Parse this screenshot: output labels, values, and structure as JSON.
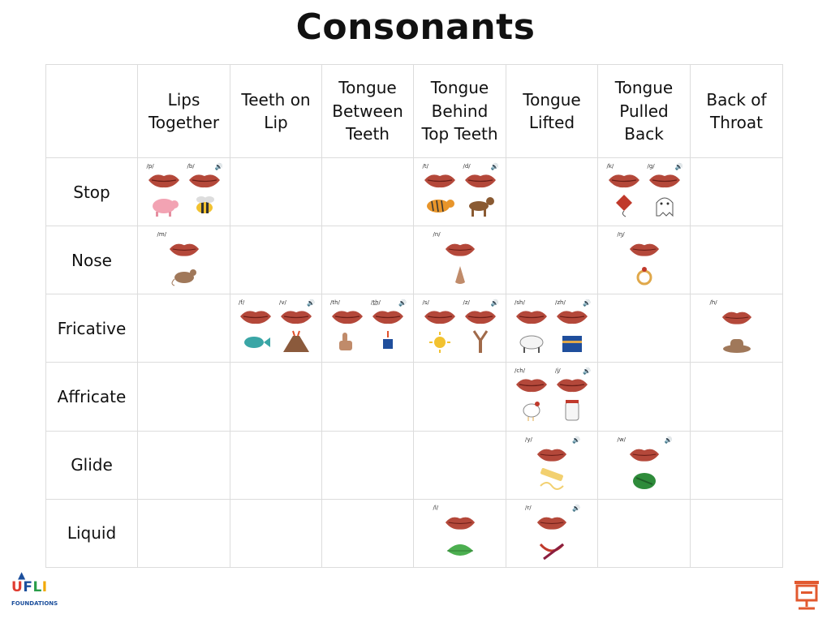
{
  "title": "Consonants",
  "columns": [
    "Lips Together",
    "Teeth on Lip",
    "Tongue Between Teeth",
    "Tongue Behind Top Teeth",
    "Tongue Lifted",
    "Tongue Pulled Back",
    "Back of Throat"
  ],
  "column_lines": [
    [
      "Lips",
      "Together"
    ],
    [
      "Teeth on",
      "Lip"
    ],
    [
      "Tongue",
      "Between",
      "Teeth"
    ],
    [
      "Tongue",
      "Behind",
      "Top Teeth"
    ],
    [
      "Tongue",
      "Lifted"
    ],
    [
      "Tongue",
      "Pulled",
      "Back"
    ],
    [
      "Back of",
      "Throat"
    ]
  ],
  "rows": [
    {
      "label": "Stop",
      "cells": [
        [
          {
            "ipa": "/p/",
            "pic": "pig",
            "voiced": false
          },
          {
            "ipa": "/b/",
            "pic": "bee",
            "voiced": true
          }
        ],
        [],
        [],
        [
          {
            "ipa": "/t/",
            "pic": "tiger",
            "voiced": false
          },
          {
            "ipa": "/d/",
            "pic": "dog",
            "voiced": true
          }
        ],
        [],
        [
          {
            "ipa": "/k/",
            "pic": "kite",
            "voiced": false
          },
          {
            "ipa": "/g/",
            "pic": "ghost",
            "voiced": true
          }
        ],
        []
      ]
    },
    {
      "label": "Nose",
      "cells": [
        [
          {
            "ipa": "/m/",
            "pic": "mouse",
            "voiced": false
          }
        ],
        [],
        [],
        [
          {
            "ipa": "/n/",
            "pic": "nose",
            "voiced": false
          }
        ],
        [],
        [
          {
            "ipa": "/ŋ/",
            "pic": "ring",
            "voiced": false
          }
        ],
        []
      ]
    },
    {
      "label": "Fricative",
      "cells": [
        [],
        [
          {
            "ipa": "/f/",
            "pic": "fish",
            "voiced": false
          },
          {
            "ipa": "/v/",
            "pic": "volcano",
            "voiced": true
          }
        ],
        [
          {
            "ipa": "/th/",
            "pic": "thumb",
            "voiced": false
          },
          {
            "ipa": "/t͟h/",
            "pic": "this",
            "voiced": true
          }
        ],
        [
          {
            "ipa": "/s/",
            "pic": "sun",
            "voiced": false
          },
          {
            "ipa": "/z/",
            "pic": "zipper",
            "voiced": true
          }
        ],
        [
          {
            "ipa": "/sh/",
            "pic": "sheep",
            "voiced": false
          },
          {
            "ipa": "/zh/",
            "pic": "treasure",
            "voiced": true
          }
        ],
        [],
        [
          {
            "ipa": "/h/",
            "pic": "hat",
            "voiced": false
          }
        ]
      ]
    },
    {
      "label": "Affricate",
      "cells": [
        [],
        [],
        [],
        [],
        [
          {
            "ipa": "/ch/",
            "pic": "chicken",
            "voiced": false
          },
          {
            "ipa": "/j/",
            "pic": "jar",
            "voiced": true
          }
        ],
        [],
        []
      ]
    },
    {
      "label": "Glide",
      "cells": [
        [],
        [],
        [],
        [],
        [
          {
            "ipa": "/y/",
            "pic": "yarn",
            "voiced": true
          }
        ],
        [
          {
            "ipa": "/w/",
            "pic": "watermelon",
            "voiced": true
          }
        ],
        []
      ]
    },
    {
      "label": "Liquid",
      "cells": [
        [],
        [],
        [],
        [
          {
            "ipa": "/l/",
            "pic": "leaf",
            "voiced": false
          }
        ],
        [
          {
            "ipa": "/r/",
            "pic": "ribbon",
            "voiced": true
          }
        ],
        [],
        []
      ]
    }
  ],
  "logo": {
    "brand": "UFLI",
    "subtitle": "FOUNDATIONS"
  },
  "icons": {
    "speaker": "speaker-icon",
    "presentation": "presentation-icon"
  },
  "colors": {
    "lips": "#b4483a",
    "grid": "#dcdcdc",
    "present": "#e2592f"
  }
}
